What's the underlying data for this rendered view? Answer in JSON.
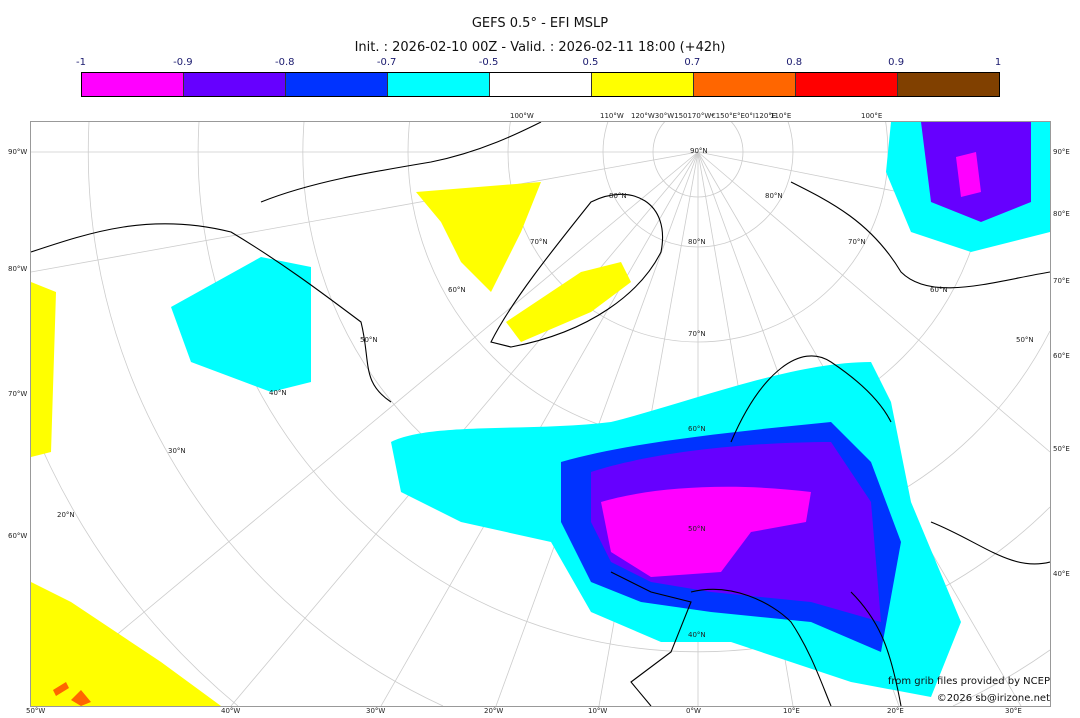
{
  "title": "GEFS 0.5° - EFI MSLP",
  "subtitle": "Init. : 2026-02-10 00Z - Valid. : 2026-02-11 18:00 (+42h)",
  "colorbar": {
    "ticks": [
      "-1",
      "-0.9",
      "-0.8",
      "-0.7",
      "-0.5",
      "0.5",
      "0.7",
      "0.8",
      "0.9",
      "1"
    ],
    "colors": [
      "#ff00ff",
      "#6600ff",
      "#0033ff",
      "#00ffff",
      "#ffffff",
      "#ffff00",
      "#ff6600",
      "#ff0000",
      "#804000"
    ]
  },
  "labels": {
    "left": [
      "90°W",
      "80°W",
      "70°W",
      "60°W"
    ],
    "right": [
      "90°E",
      "80°E",
      "70°E",
      "60°E",
      "50°E",
      "40°E"
    ],
    "bottom": [
      "50°W",
      "40°W",
      "30°W",
      "20°W",
      "10°W",
      "0°W",
      "10°E",
      "20°E",
      "30°E"
    ],
    "top": [
      "100°W",
      "110°W",
      "120°W30°W150170°W€150°E°E0°I120°E",
      "110°E",
      "100°E"
    ],
    "lat": [
      "90°N",
      "80°N",
      "70°N",
      "60°N",
      "50°N",
      "40°N",
      "30°N",
      "20°N",
      "80°N",
      "70°N",
      "60°N",
      "50°N",
      "40°N",
      "80°N",
      "70°N",
      "60°N",
      "50°N"
    ]
  },
  "credits": {
    "line1": "from grib files provided by NCEP",
    "line2": "©2026 sb@irizone.net"
  }
}
